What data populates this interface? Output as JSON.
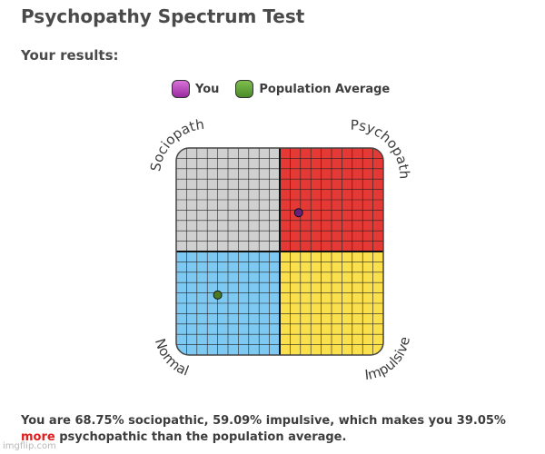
{
  "title": "Psychopathy Spectrum Test",
  "subtitle": "Your results:",
  "legend": [
    {
      "label": "You",
      "color": "#8b2b8f"
    },
    {
      "label": "Population Average",
      "color": "#5a8f2e"
    }
  ],
  "quadrant_labels": {
    "top_left": "Sociopath",
    "top_right": "Psychopath",
    "bottom_left": "Normal",
    "bottom_right": "Impulsive"
  },
  "quadrant_colors": {
    "top_left": "#d0d0d0",
    "top_right": "#e53935",
    "bottom_left": "#7dc9f2",
    "bottom_right": "#fbe04e"
  },
  "chart_data": {
    "type": "scatter",
    "xlim": [
      0,
      100
    ],
    "ylim": [
      0,
      100
    ],
    "grid": true,
    "points": [
      {
        "name": "You",
        "x": 59.09,
        "y": 68.75,
        "color": "#6a1f7a"
      },
      {
        "name": "Population Average",
        "x": 20,
        "y": 29,
        "color": "#4b7a25"
      }
    ]
  },
  "result": {
    "before": "You are 68.75% sociopathic, 59.09% impulsive, which makes you 39.05% ",
    "highlight": "more",
    "after": " psychopathic than the population average."
  },
  "watermark": "imgflip.com"
}
